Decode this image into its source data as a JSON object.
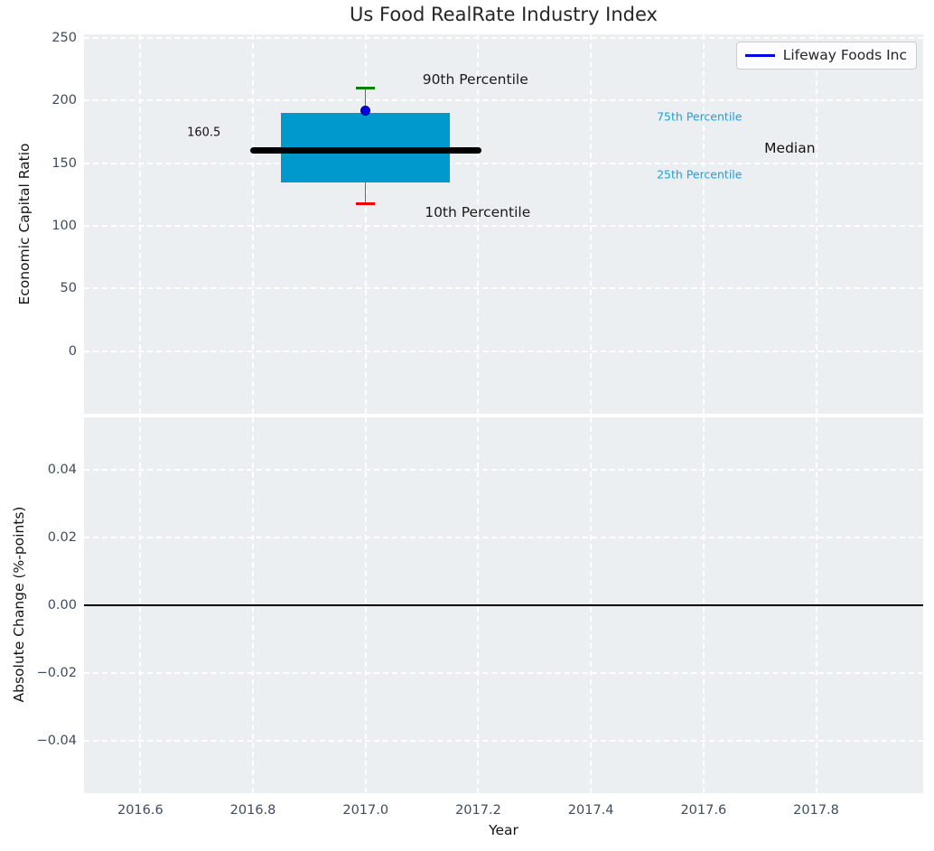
{
  "chart_data": [
    {
      "type": "box",
      "title": "Us Food RealRate Industry Index",
      "ylabel": "Economic Capital Ratio",
      "xlim": [
        2016.5,
        2017.99
      ],
      "ylim": [
        -50,
        253
      ],
      "grid": true,
      "yticks": {
        "values": [
          250,
          200,
          150,
          100,
          50,
          0
        ],
        "labels": [
          "250",
          "200",
          "150",
          "100",
          "50",
          "0"
        ]
      },
      "grid_xticks": [
        2016.6,
        2016.8,
        2017.0,
        2017.2,
        2017.4,
        2017.6,
        2017.8
      ],
      "legend": {
        "label": "Lifeway Foods Inc",
        "line_color": "#0000ee",
        "position": "upper right"
      },
      "box": {
        "x": 2017.0,
        "p10": 118,
        "p25": 135,
        "median": 160.5,
        "p75": 190,
        "p90": 210,
        "box_half_width": 0.15,
        "median_half_width": 0.205,
        "cap_half_width": 0.017,
        "company_marker": {
          "name": "Lifeway Foods Inc",
          "value": 192,
          "color": "#0000e8",
          "edge_color": "#000080"
        },
        "colors": {
          "box_fill": "#0099cd",
          "median_line": "#000000",
          "p90_cap": "#008000",
          "p10_cap": "#ee0000",
          "whisker": "#666666"
        }
      },
      "annotations": [
        {
          "text": "90th Percentile",
          "x": 2017.101,
          "y": 217,
          "color": "#1a1a1a",
          "size": 15.5
        },
        {
          "text": "10th Percentile",
          "x": 2017.105,
          "y": 111,
          "color": "#1a1a1a",
          "size": 15.5
        },
        {
          "text": "75th Percentile",
          "x": 2017.517,
          "y": 187,
          "color": "#1fa0d6",
          "size": 12.5
        },
        {
          "text": "25th Percentile",
          "x": 2017.517,
          "y": 141,
          "color": "#1fa0d6",
          "size": 12.5
        },
        {
          "text": "Median",
          "x": 2017.708,
          "y": 162,
          "color": "#111111",
          "size": 15.5
        },
        {
          "text": "160.5",
          "x": 2016.683,
          "y": 174.5,
          "color": "#111111",
          "size": 13
        }
      ]
    },
    {
      "type": "line",
      "ylabel": "Absolute Change (%-points)",
      "xlabel": "Year",
      "xlim": [
        2016.5,
        2017.99
      ],
      "ylim": [
        -0.0555,
        0.0555
      ],
      "grid": true,
      "yticks": {
        "values": [
          0.04,
          0.02,
          0,
          -0.02,
          -0.04
        ],
        "labels": [
          "0.04",
          "0.02",
          "0.00",
          "−0.02",
          "−0.04"
        ]
      },
      "xticks": {
        "values": [
          2016.6,
          2016.8,
          2017.0,
          2017.2,
          2017.4,
          2017.6,
          2017.8
        ],
        "labels": [
          "2016.6",
          "2016.8",
          "2017.0",
          "2017.2",
          "2017.4",
          "2017.6",
          "2017.8"
        ]
      },
      "zero_line": {
        "y": 0,
        "color": "#000000"
      }
    }
  ],
  "colors": {
    "plot_bg": "#eceff1",
    "grid": "#ffffff",
    "tick_label": "#3d4c5e",
    "title": "#262626"
  }
}
